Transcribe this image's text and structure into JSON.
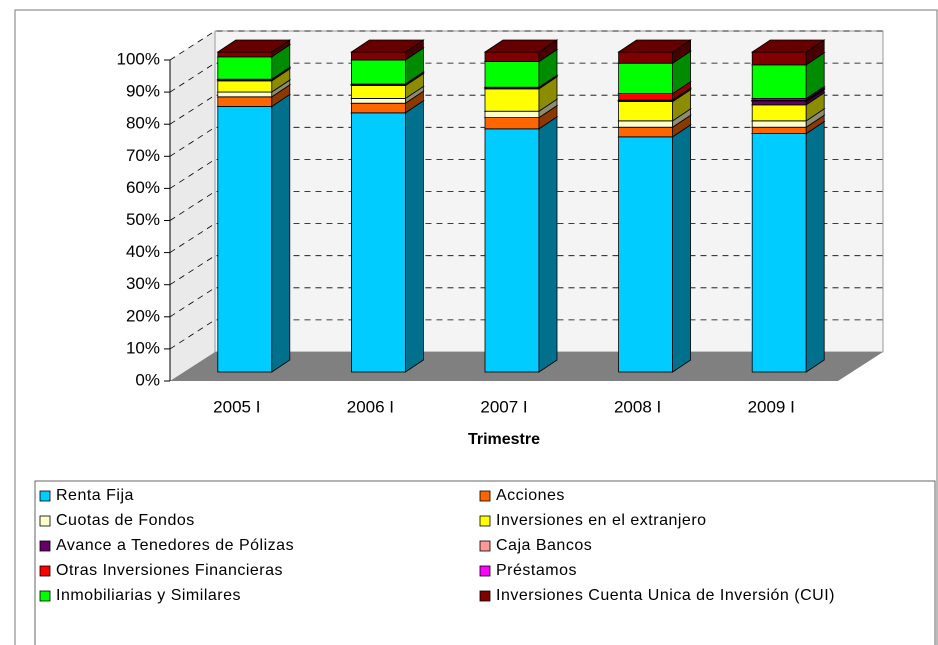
{
  "chart_data": {
    "type": "bar3d_stacked",
    "x_label": "Trimestre",
    "categories": [
      "2005 I",
      "2006 I",
      "2007 I",
      "2008 I",
      "2009 I"
    ],
    "ylim": [
      0,
      100
    ],
    "yticks": [
      {
        "value": 0,
        "label": "0%"
      },
      {
        "value": 10,
        "label": "10%"
      },
      {
        "value": 20,
        "label": "20%"
      },
      {
        "value": 30,
        "label": "30%"
      },
      {
        "value": 40,
        "label": "40%"
      },
      {
        "value": 50,
        "label": "50%"
      },
      {
        "value": 60,
        "label": "60%"
      },
      {
        "value": 70,
        "label": "70%"
      },
      {
        "value": 80,
        "label": "80%"
      },
      {
        "value": 90,
        "label": "90%"
      },
      {
        "value": 100,
        "label": "100%"
      }
    ],
    "grid": true,
    "series": [
      {
        "name": "Renta Fija",
        "color": "#00ccff",
        "values": [
          83,
          81,
          76,
          73.5,
          74.5
        ]
      },
      {
        "name": "Acciones",
        "color": "#ff6600",
        "values": [
          3,
          3,
          3.5,
          3,
          2
        ]
      },
      {
        "name": "Cuotas de Fondos",
        "color": "#ffffcc",
        "values": [
          1.5,
          1.5,
          2,
          2,
          2
        ]
      },
      {
        "name": "Inversiones en el extranjero",
        "color": "#ffff00",
        "values": [
          3.5,
          4,
          7,
          6,
          5
        ]
      },
      {
        "name": "Avance a Tenedores de Pólizas",
        "color": "#660066",
        "values": [
          0.3,
          0.3,
          0.3,
          0.3,
          1
        ]
      },
      {
        "name": "Caja Bancos",
        "color": "#ff9999",
        "values": [
          0.2,
          0.2,
          0.2,
          0.2,
          0.3
        ]
      },
      {
        "name": "Otras Inversiones Financieras",
        "color": "#ff0000",
        "values": [
          0,
          0,
          0,
          2,
          0.2
        ]
      },
      {
        "name": "Préstamos",
        "color": "#ff00ff",
        "values": [
          0,
          0,
          0,
          0,
          0.5
        ]
      },
      {
        "name": "Inmobiliarias y Similares",
        "color": "#00ff00",
        "values": [
          7,
          7.5,
          8,
          9.5,
          10.5
        ]
      },
      {
        "name": "Inversiones Cuenta Unica de Inversión (CUI)",
        "color": "#800000",
        "values": [
          1.5,
          2.5,
          3,
          3.5,
          4
        ]
      }
    ]
  }
}
